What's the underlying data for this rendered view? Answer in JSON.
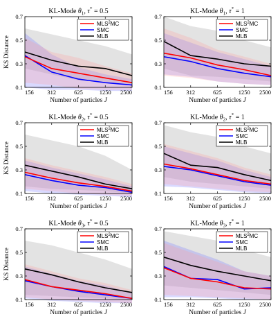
{
  "colors": {
    "MLS2MC": "#ff0000",
    "SMC": "#0000ff",
    "MLB": "#000000"
  },
  "legend": {
    "entries": [
      {
        "key": "MLS2MC",
        "base": "MLS",
        "sup": "2",
        "rest": "MC"
      },
      {
        "key": "SMC",
        "text": "SMC"
      },
      {
        "key": "MLB",
        "text": "MLB"
      }
    ]
  },
  "chart_data": [
    {
      "type": "line",
      "prefix": "KL-Mode ",
      "sub": "1",
      "tau": "0.5",
      "xlabel_text": "Number of particles ",
      "xlabel_var": "J",
      "ylabel": "KS Distance",
      "ylim": [
        0.1,
        0.7
      ],
      "yticks": [
        "0.1",
        "0.3",
        "0.5",
        "0.7"
      ],
      "x": [
        "156",
        "312",
        "625",
        "1250",
        "2500"
      ],
      "series": [
        {
          "name": "MLS2MC",
          "values": [
            0.36,
            0.26,
            0.22,
            0.18,
            0.14
          ],
          "lower": [
            0.14,
            0.12,
            0.09,
            0.08,
            0.08
          ],
          "upper": [
            0.52,
            0.4,
            0.35,
            0.28,
            0.22
          ]
        },
        {
          "name": "SMC",
          "values": [
            0.37,
            0.23,
            0.17,
            0.14,
            0.12
          ],
          "lower": [
            0.1,
            0.08,
            0.08,
            0.07,
            0.07
          ],
          "upper": [
            0.56,
            0.38,
            0.27,
            0.21,
            0.17
          ]
        },
        {
          "name": "MLB",
          "values": [
            0.4,
            0.33,
            0.28,
            0.26,
            0.2
          ],
          "lower": [
            0.26,
            0.21,
            0.16,
            0.14,
            0.12
          ],
          "upper": [
            0.6,
            0.55,
            0.5,
            0.45,
            0.38
          ]
        }
      ]
    },
    {
      "type": "line",
      "prefix": "KL-Mode ",
      "sub": "1",
      "tau": "1",
      "xlabel_text": "Number of particles ",
      "xlabel_var": "J",
      "ylabel": "",
      "ylim": [
        0.1,
        0.7
      ],
      "yticks": [
        "0.1",
        "0.3",
        "0.5",
        "0.7"
      ],
      "x": [
        "156",
        "312",
        "625",
        "1250",
        "2500"
      ],
      "series": [
        {
          "name": "MLS2MC",
          "values": [
            0.39,
            0.35,
            0.29,
            0.25,
            0.2
          ],
          "lower": [
            0.2,
            0.18,
            0.15,
            0.13,
            0.12
          ],
          "upper": [
            0.6,
            0.52,
            0.42,
            0.36,
            0.3
          ]
        },
        {
          "name": "SMC",
          "values": [
            0.36,
            0.32,
            0.26,
            0.22,
            0.19
          ],
          "lower": [
            0.21,
            0.19,
            0.15,
            0.13,
            0.12
          ],
          "upper": [
            0.56,
            0.48,
            0.4,
            0.34,
            0.28
          ]
        },
        {
          "name": "MLB",
          "values": [
            0.49,
            0.37,
            0.34,
            0.3,
            0.28
          ],
          "lower": [
            0.26,
            0.2,
            0.19,
            0.17,
            0.15
          ],
          "upper": [
            0.7,
            0.62,
            0.58,
            0.5,
            0.44
          ]
        }
      ]
    },
    {
      "type": "line",
      "prefix": "KL-Mode ",
      "sub": "2",
      "tau": "0.5",
      "xlabel_text": "Number of particles ",
      "xlabel_var": "J",
      "ylabel": "KS Distance",
      "ylim": [
        0.1,
        0.7
      ],
      "yticks": [
        "0.1",
        "0.3",
        "0.5",
        "0.7"
      ],
      "x": [
        "156",
        "312",
        "625",
        "1250",
        "2500"
      ],
      "series": [
        {
          "name": "MLS2MC",
          "values": [
            0.28,
            0.23,
            0.19,
            0.16,
            0.12
          ],
          "lower": [
            0.14,
            0.12,
            0.1,
            0.09,
            0.08
          ],
          "upper": [
            0.4,
            0.34,
            0.29,
            0.24,
            0.18
          ]
        },
        {
          "name": "SMC",
          "values": [
            0.26,
            0.21,
            0.17,
            0.15,
            0.11
          ],
          "lower": [
            0.12,
            0.1,
            0.09,
            0.08,
            0.07
          ],
          "upper": [
            0.38,
            0.32,
            0.27,
            0.22,
            0.16
          ]
        },
        {
          "name": "MLB",
          "values": [
            0.34,
            0.29,
            0.24,
            0.18,
            0.14
          ],
          "lower": [
            0.16,
            0.14,
            0.13,
            0.12,
            0.1
          ],
          "upper": [
            0.6,
            0.55,
            0.5,
            0.42,
            0.3
          ]
        }
      ]
    },
    {
      "type": "line",
      "prefix": "KL-Mode ",
      "sub": "2",
      "tau": "1",
      "xlabel_text": "Number of particles ",
      "xlabel_var": "J",
      "ylabel": "",
      "ylim": [
        0.1,
        0.7
      ],
      "yticks": [
        "0.1",
        "0.3",
        "0.5",
        "0.7"
      ],
      "x": [
        "156",
        "312",
        "625",
        "1250",
        "2500"
      ],
      "series": [
        {
          "name": "MLS2MC",
          "values": [
            0.35,
            0.31,
            0.26,
            0.21,
            0.18
          ],
          "lower": [
            0.18,
            0.16,
            0.14,
            0.12,
            0.11
          ],
          "upper": [
            0.52,
            0.46,
            0.4,
            0.32,
            0.26
          ]
        },
        {
          "name": "SMC",
          "values": [
            0.33,
            0.3,
            0.25,
            0.2,
            0.17
          ],
          "lower": [
            0.16,
            0.15,
            0.13,
            0.11,
            0.1
          ],
          "upper": [
            0.5,
            0.44,
            0.38,
            0.3,
            0.24
          ]
        },
        {
          "name": "MLB",
          "values": [
            0.44,
            0.34,
            0.32,
            0.26,
            0.21
          ],
          "lower": [
            0.24,
            0.2,
            0.18,
            0.16,
            0.14
          ],
          "upper": [
            0.68,
            0.62,
            0.58,
            0.5,
            0.44
          ]
        }
      ]
    },
    {
      "type": "line",
      "prefix": "KL-Mode ",
      "sub": "3",
      "tau": "0.5",
      "xlabel_text": "Number of particles ",
      "xlabel_var": "J",
      "ylabel": "KS Distance",
      "ylim": [
        0.1,
        0.7
      ],
      "yticks": [
        "0.1",
        "0.3",
        "0.5",
        "0.7"
      ],
      "x": [
        "156",
        "312",
        "625",
        "1250",
        "2500"
      ],
      "series": [
        {
          "name": "MLS2MC",
          "values": [
            0.27,
            0.21,
            0.18,
            0.15,
            0.11
          ],
          "lower": [
            0.12,
            0.1,
            0.09,
            0.08,
            0.07
          ],
          "upper": [
            0.4,
            0.34,
            0.28,
            0.24,
            0.18
          ]
        },
        {
          "name": "SMC",
          "values": [
            0.26,
            0.21,
            0.17,
            0.14,
            0.11
          ],
          "lower": [
            0.11,
            0.09,
            0.08,
            0.07,
            0.07
          ],
          "upper": [
            0.38,
            0.32,
            0.26,
            0.22,
            0.16
          ]
        },
        {
          "name": "MLB",
          "values": [
            0.36,
            0.31,
            0.25,
            0.2,
            0.16
          ],
          "lower": [
            0.14,
            0.13,
            0.12,
            0.11,
            0.1
          ],
          "upper": [
            0.6,
            0.56,
            0.5,
            0.44,
            0.36
          ]
        }
      ]
    },
    {
      "type": "line",
      "prefix": "KL-Mode ",
      "sub": "3",
      "tau": "1",
      "xlabel_text": "Number of particles ",
      "xlabel_var": "J",
      "ylabel": "",
      "ylim": [
        0.1,
        0.7
      ],
      "yticks": [
        "0.1",
        "0.3",
        "0.5",
        "0.7"
      ],
      "x": [
        "156",
        "312",
        "625",
        "1250",
        "2500"
      ],
      "series": [
        {
          "name": "MLS2MC",
          "values": [
            0.37,
            0.28,
            0.25,
            0.2,
            0.19
          ],
          "lower": [
            0.14,
            0.13,
            0.12,
            0.11,
            0.1
          ],
          "upper": [
            0.58,
            0.5,
            0.42,
            0.34,
            0.3
          ]
        },
        {
          "name": "SMC",
          "values": [
            0.38,
            0.28,
            0.27,
            0.19,
            0.2
          ],
          "lower": [
            0.12,
            0.12,
            0.11,
            0.1,
            0.1
          ],
          "upper": [
            0.6,
            0.52,
            0.44,
            0.34,
            0.3
          ]
        },
        {
          "name": "MLB",
          "values": [
            0.46,
            0.39,
            0.34,
            0.3,
            0.26
          ],
          "lower": [
            0.22,
            0.2,
            0.18,
            0.16,
            0.14
          ],
          "upper": [
            0.68,
            0.64,
            0.6,
            0.52,
            0.46
          ]
        }
      ]
    }
  ]
}
